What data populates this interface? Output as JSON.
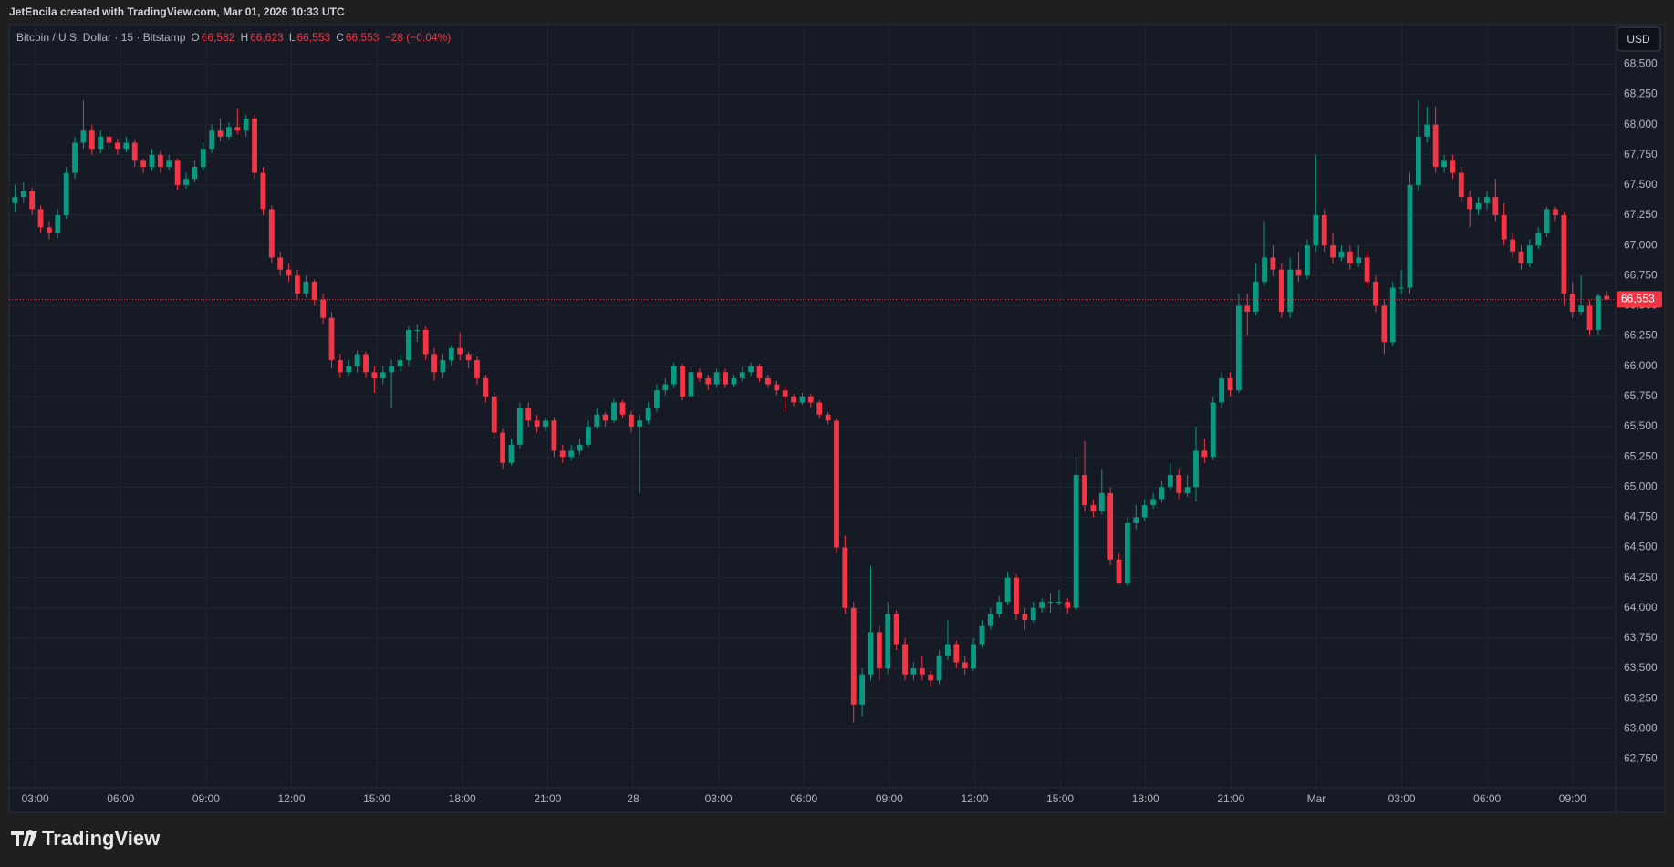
{
  "header": {
    "attribution": "JetEncila created with TradingView.com, Mar 01, 2026 10:33 UTC"
  },
  "chart_data": {
    "type": "candlestick",
    "symbol": "Bitcoin / U.S. Dollar · 15 · Bitstamp",
    "legend": {
      "o_label": "O",
      "o": {
        "value": 66582,
        "label": "66,582"
      },
      "h_label": "H",
      "h": {
        "value": 66623,
        "label": "66,623"
      },
      "l_label": "L",
      "l": {
        "value": 66553,
        "label": "66,553"
      },
      "c_label": "C",
      "c": {
        "value": 66553,
        "label": "66,553"
      },
      "change": "−28 (−0.04%)"
    },
    "currency": "USD",
    "up_color": "#089981",
    "down_color": "#f23645",
    "grid": true,
    "ylim": [
      62512,
      68827
    ],
    "yticks": [
      {
        "value": 62750,
        "label": "62,750"
      },
      {
        "value": 63000,
        "label": "63,000"
      },
      {
        "value": 63250,
        "label": "63,250"
      },
      {
        "value": 63500,
        "label": "63,500"
      },
      {
        "value": 63750,
        "label": "63,750"
      },
      {
        "value": 64000,
        "label": "64,000"
      },
      {
        "value": 64250,
        "label": "64,250"
      },
      {
        "value": 64500,
        "label": "64,500"
      },
      {
        "value": 64750,
        "label": "64,750"
      },
      {
        "value": 65000,
        "label": "65,000"
      },
      {
        "value": 65250,
        "label": "65,250"
      },
      {
        "value": 65500,
        "label": "65,500"
      },
      {
        "value": 65750,
        "label": "65,750"
      },
      {
        "value": 66000,
        "label": "66,000"
      },
      {
        "value": 66250,
        "label": "66,250"
      },
      {
        "value": 66500,
        "label": "66,500"
      },
      {
        "value": 66750,
        "label": "66,750"
      },
      {
        "value": 67000,
        "label": "67,000"
      },
      {
        "value": 67250,
        "label": "67,250"
      },
      {
        "value": 67500,
        "label": "67,500"
      },
      {
        "value": 67750,
        "label": "67,750"
      },
      {
        "value": 68000,
        "label": "68,000"
      },
      {
        "value": 68250,
        "label": "68,250"
      },
      {
        "value": 68500,
        "label": "68,500"
      }
    ],
    "time_labels": [
      "03:00",
      "06:00",
      "09:00",
      "12:00",
      "15:00",
      "18:00",
      "21:00",
      "28",
      "03:00",
      "06:00",
      "09:00",
      "12:00",
      "15:00",
      "18:00",
      "21:00",
      "Mar",
      "03:00",
      "06:00",
      "09:00"
    ],
    "last_price": {
      "value": 66553,
      "label": "66,553"
    },
    "candles": [
      [
        67350,
        67500,
        67280,
        67400
      ],
      [
        67400,
        67520,
        67350,
        67450
      ],
      [
        67450,
        67480,
        67250,
        67300
      ],
      [
        67300,
        67330,
        67100,
        67150
      ],
      [
        67150,
        67200,
        67050,
        67100
      ],
      [
        67100,
        67300,
        67060,
        67250
      ],
      [
        67250,
        67650,
        67220,
        67600
      ],
      [
        67600,
        67900,
        67550,
        67850
      ],
      [
        67850,
        68200,
        67800,
        67950
      ],
      [
        67950,
        68000,
        67750,
        67800
      ],
      [
        67800,
        67950,
        67760,
        67900
      ],
      [
        67900,
        67930,
        67800,
        67850
      ],
      [
        67850,
        67880,
        67750,
        67800
      ],
      [
        67800,
        67900,
        67770,
        67850
      ],
      [
        67850,
        67870,
        67650,
        67700
      ],
      [
        67700,
        67720,
        67600,
        67650
      ],
      [
        67650,
        67800,
        67620,
        67750
      ],
      [
        67750,
        67780,
        67600,
        67650
      ],
      [
        67650,
        67750,
        67620,
        67700
      ],
      [
        67700,
        67720,
        67460,
        67500
      ],
      [
        67500,
        67600,
        67470,
        67550
      ],
      [
        67550,
        67700,
        67520,
        67650
      ],
      [
        67650,
        67850,
        67620,
        67800
      ],
      [
        67800,
        68000,
        67760,
        67950
      ],
      [
        67950,
        68050,
        67860,
        67900
      ],
      [
        67900,
        68020,
        67870,
        67980
      ],
      [
        67980,
        68130,
        67920,
        67950
      ],
      [
        67950,
        68080,
        67900,
        68050
      ],
      [
        68050,
        68080,
        67550,
        67600
      ],
      [
        67600,
        67650,
        67250,
        67300
      ],
      [
        67300,
        67330,
        66850,
        66900
      ],
      [
        66900,
        66950,
        66750,
        66800
      ],
      [
        66800,
        66850,
        66700,
        66750
      ],
      [
        66750,
        66800,
        66550,
        66600
      ],
      [
        66600,
        66750,
        66570,
        66700
      ],
      [
        66700,
        66720,
        66500,
        66550
      ],
      [
        66550,
        66600,
        66350,
        66400
      ],
      [
        66400,
        66450,
        65980,
        66050
      ],
      [
        66050,
        66100,
        65900,
        65950
      ],
      [
        65950,
        66050,
        65920,
        66000
      ],
      [
        66000,
        66130,
        65950,
        66100
      ],
      [
        66100,
        66120,
        65900,
        65950
      ],
      [
        65950,
        66000,
        65780,
        65900
      ],
      [
        65900,
        66000,
        65850,
        65950
      ],
      [
        65950,
        66050,
        65650,
        66000
      ],
      [
        66000,
        66100,
        65960,
        66050
      ],
      [
        66050,
        66330,
        66000,
        66300
      ],
      [
        66300,
        66350,
        66200,
        66300
      ],
      [
        66300,
        66330,
        66050,
        66100
      ],
      [
        66100,
        66150,
        65880,
        65950
      ],
      [
        65950,
        66100,
        65900,
        66050
      ],
      [
        66050,
        66180,
        66000,
        66150
      ],
      [
        66150,
        66280,
        66050,
        66100
      ],
      [
        66100,
        66120,
        65980,
        66050
      ],
      [
        66050,
        66080,
        65850,
        65900
      ],
      [
        65900,
        65930,
        65700,
        65750
      ],
      [
        65750,
        65780,
        65400,
        65450
      ],
      [
        65450,
        65480,
        65150,
        65200
      ],
      [
        65200,
        65400,
        65180,
        65350
      ],
      [
        65350,
        65700,
        65320,
        65650
      ],
      [
        65650,
        65700,
        65500,
        65550
      ],
      [
        65550,
        65600,
        65450,
        65500
      ],
      [
        65500,
        65580,
        65460,
        65550
      ],
      [
        65550,
        65580,
        65250,
        65300
      ],
      [
        65300,
        65350,
        65200,
        65250
      ],
      [
        65250,
        65350,
        65220,
        65300
      ],
      [
        65300,
        65400,
        65270,
        65350
      ],
      [
        65350,
        65550,
        65330,
        65500
      ],
      [
        65500,
        65650,
        65480,
        65600
      ],
      [
        65600,
        65620,
        65500,
        65550
      ],
      [
        65550,
        65730,
        65530,
        65700
      ],
      [
        65700,
        65720,
        65570,
        65600
      ],
      [
        65600,
        65630,
        65450,
        65500
      ],
      [
        65500,
        65600,
        64950,
        65550
      ],
      [
        65550,
        65700,
        65520,
        65650
      ],
      [
        65650,
        65850,
        65620,
        65800
      ],
      [
        65800,
        65900,
        65760,
        65850
      ],
      [
        65850,
        66030,
        65820,
        66000
      ],
      [
        66000,
        66020,
        65720,
        65750
      ],
      [
        65750,
        66000,
        65730,
        65950
      ],
      [
        65950,
        65980,
        65870,
        65900
      ],
      [
        65900,
        65930,
        65800,
        65850
      ],
      [
        65850,
        65980,
        65820,
        65950
      ],
      [
        65950,
        65980,
        65820,
        65850
      ],
      [
        65850,
        65930,
        65830,
        65900
      ],
      [
        65900,
        65990,
        65870,
        65950
      ],
      [
        65950,
        66030,
        65920,
        66000
      ],
      [
        66000,
        66020,
        65870,
        65900
      ],
      [
        65900,
        65930,
        65820,
        65850
      ],
      [
        65850,
        65880,
        65760,
        65800
      ],
      [
        65800,
        65830,
        65620,
        65750
      ],
      [
        65750,
        65770,
        65670,
        65700
      ],
      [
        65700,
        65780,
        65680,
        65750
      ],
      [
        65750,
        65770,
        65660,
        65700
      ],
      [
        65700,
        65720,
        65570,
        65600
      ],
      [
        65600,
        65620,
        65520,
        65550
      ],
      [
        65550,
        65570,
        64450,
        64500
      ],
      [
        64500,
        64600,
        63950,
        64000
      ],
      [
        64000,
        64050,
        63050,
        63200
      ],
      [
        63200,
        63500,
        63100,
        63450
      ],
      [
        63450,
        64350,
        63400,
        63800
      ],
      [
        63800,
        63850,
        63400,
        63500
      ],
      [
        63500,
        64050,
        63450,
        63950
      ],
      [
        63950,
        63980,
        63650,
        63700
      ],
      [
        63700,
        63750,
        63400,
        63450
      ],
      [
        63450,
        63550,
        63400,
        63500
      ],
      [
        63500,
        63600,
        63400,
        63450
      ],
      [
        63450,
        63480,
        63350,
        63400
      ],
      [
        63400,
        63650,
        63370,
        63600
      ],
      [
        63600,
        63900,
        63570,
        63700
      ],
      [
        63700,
        63730,
        63500,
        63550
      ],
      [
        63550,
        63600,
        63450,
        63500
      ],
      [
        63500,
        63750,
        63480,
        63700
      ],
      [
        63700,
        63900,
        63670,
        63850
      ],
      [
        63850,
        64000,
        63820,
        63950
      ],
      [
        63950,
        64100,
        63920,
        64050
      ],
      [
        64050,
        64300,
        64020,
        64250
      ],
      [
        64250,
        64280,
        63900,
        63950
      ],
      [
        63950,
        64000,
        63820,
        63900
      ],
      [
        63900,
        64050,
        63880,
        64000
      ],
      [
        64000,
        64080,
        63960,
        64050
      ],
      [
        64050,
        64120,
        63960,
        64050
      ],
      [
        64050,
        64150,
        64020,
        64050
      ],
      [
        64050,
        64080,
        63950,
        64000
      ],
      [
        64000,
        65250,
        63980,
        65100
      ],
      [
        65100,
        65380,
        64800,
        64850
      ],
      [
        64850,
        64900,
        64750,
        64800
      ],
      [
        64800,
        65150,
        64770,
        64950
      ],
      [
        64950,
        65000,
        64350,
        64400
      ],
      [
        64400,
        64450,
        64200,
        64200
      ],
      [
        64200,
        64750,
        64180,
        64700
      ],
      [
        64700,
        64850,
        64650,
        64750
      ],
      [
        64750,
        64900,
        64720,
        64850
      ],
      [
        64850,
        64950,
        64820,
        64900
      ],
      [
        64900,
        65050,
        64870,
        65000
      ],
      [
        65000,
        65200,
        64970,
        65100
      ],
      [
        65100,
        65150,
        64900,
        64950
      ],
      [
        64950,
        65100,
        64920,
        65000
      ],
      [
        65000,
        65500,
        64880,
        65300
      ],
      [
        65300,
        65400,
        65200,
        65250
      ],
      [
        65250,
        65750,
        65220,
        65700
      ],
      [
        65700,
        65950,
        65650,
        65900
      ],
      [
        65900,
        65950,
        65750,
        65800
      ],
      [
        65800,
        66600,
        65780,
        66500
      ],
      [
        66500,
        66600,
        66250,
        66450
      ],
      [
        66450,
        66850,
        66420,
        66700
      ],
      [
        66700,
        67200,
        66670,
        66900
      ],
      [
        66900,
        67000,
        66750,
        66800
      ],
      [
        66800,
        66850,
        66400,
        66450
      ],
      [
        66450,
        66900,
        66400,
        66800
      ],
      [
        66800,
        66950,
        66700,
        66750
      ],
      [
        66750,
        67050,
        66720,
        67000
      ],
      [
        67000,
        67750,
        66950,
        67250
      ],
      [
        67250,
        67300,
        66950,
        67000
      ],
      [
        67000,
        67100,
        66850,
        66900
      ],
      [
        66900,
        67000,
        66870,
        66950
      ],
      [
        66950,
        67000,
        66800,
        66850
      ],
      [
        66850,
        67000,
        66820,
        66900
      ],
      [
        66900,
        66950,
        66650,
        66700
      ],
      [
        66700,
        66750,
        66450,
        66500
      ],
      [
        66500,
        66550,
        66100,
        66200
      ],
      [
        66200,
        66700,
        66170,
        66650
      ],
      [
        66650,
        66800,
        66600,
        66650
      ],
      [
        66650,
        67600,
        66600,
        67500
      ],
      [
        67500,
        68200,
        67450,
        67900
      ],
      [
        67900,
        68150,
        67850,
        68000
      ],
      [
        68000,
        68150,
        67600,
        67650
      ],
      [
        67650,
        67750,
        67600,
        67700
      ],
      [
        67700,
        67750,
        67550,
        67600
      ],
      [
        67600,
        67650,
        67350,
        67400
      ],
      [
        67400,
        67450,
        67150,
        67300
      ],
      [
        67300,
        67400,
        67250,
        67350
      ],
      [
        67350,
        67450,
        67300,
        67400
      ],
      [
        67400,
        67550,
        67200,
        67250
      ],
      [
        67250,
        67350,
        67000,
        67050
      ],
      [
        67050,
        67100,
        66900,
        66950
      ],
      [
        66950,
        67000,
        66800,
        66850
      ],
      [
        66850,
        67050,
        66820,
        67000
      ],
      [
        67000,
        67150,
        66970,
        67100
      ],
      [
        67100,
        67320,
        67070,
        67300
      ],
      [
        67300,
        67320,
        67200,
        67250
      ],
      [
        67250,
        67280,
        66500,
        66600
      ],
      [
        66600,
        66700,
        66400,
        66450
      ],
      [
        66450,
        66750,
        66420,
        66500
      ],
      [
        66500,
        66550,
        66250,
        66300
      ],
      [
        66300,
        66600,
        66250,
        66582
      ],
      [
        66582,
        66623,
        66553,
        66553
      ]
    ]
  },
  "footer": {
    "brand": "TradingView"
  }
}
